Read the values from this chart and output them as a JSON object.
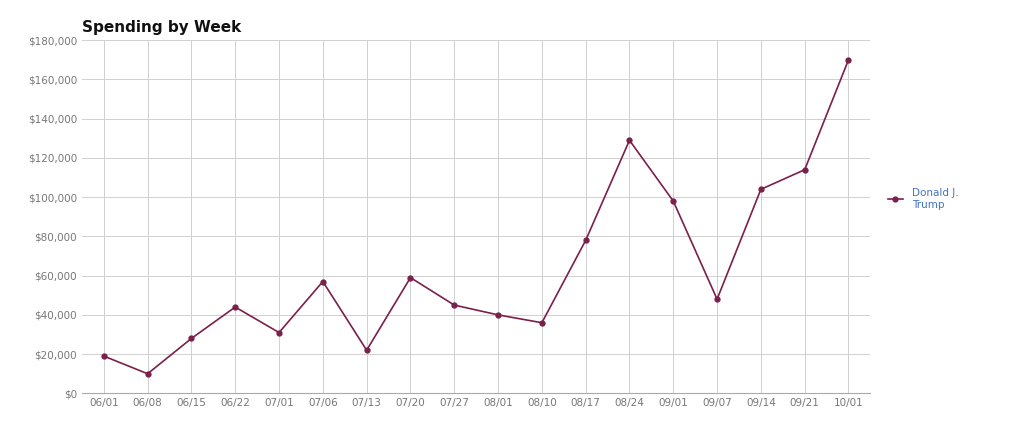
{
  "title": "Spending by Week",
  "x_labels": [
    "06/01",
    "06/08",
    "06/15",
    "06/22",
    "07/01",
    "07/06",
    "07/13",
    "07/20",
    "07/27",
    "08/01",
    "08/10",
    "08/17",
    "08/24",
    "09/01",
    "09/07",
    "09/14",
    "09/21",
    "10/01"
  ],
  "values": [
    19000,
    10000,
    28000,
    44000,
    31000,
    57000,
    22000,
    59000,
    45000,
    40000,
    36000,
    78000,
    129000,
    98000,
    48000,
    104000,
    114000,
    170000
  ],
  "line_color": "#7B1F4B",
  "marker": "o",
  "marker_size": 3.5,
  "legend_label": "Donald J.\nTrump",
  "legend_color": "#4472C4",
  "ylim": [
    0,
    180000
  ],
  "ytick_values": [
    0,
    20000,
    40000,
    60000,
    80000,
    100000,
    120000,
    140000,
    160000,
    180000
  ],
  "background_color": "#ffffff",
  "grid_color": "#d0d0d0",
  "title_fontsize": 11,
  "tick_fontsize": 7.5,
  "legend_fontsize": 7.5
}
